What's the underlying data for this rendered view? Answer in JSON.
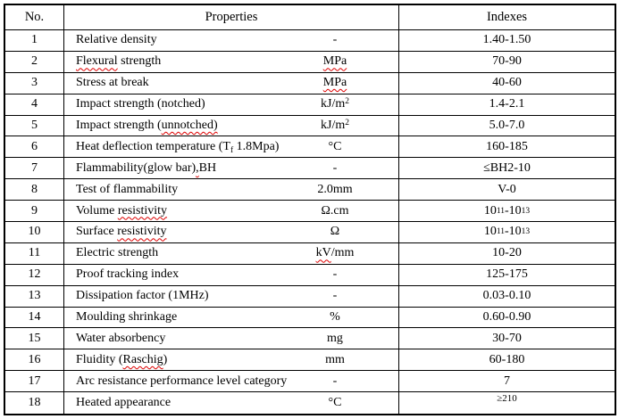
{
  "table": {
    "header": {
      "no": "No.",
      "properties": "Properties",
      "indexes": "Indexes"
    },
    "colors": {
      "border": "#000000",
      "text": "#000000",
      "background": "#ffffff",
      "spellcheck_underline": "#dd0000"
    },
    "rows": [
      {
        "no": "1",
        "property": [
          {
            "t": "Relative density"
          }
        ],
        "unit": [
          {
            "t": "-"
          }
        ],
        "index": [
          {
            "t": "1.40-1.50"
          }
        ]
      },
      {
        "no": "2",
        "property": [
          {
            "t": "Flexural",
            "wavy": true
          },
          {
            "t": " strength"
          }
        ],
        "unit": [
          {
            "t": "MPa",
            "wavy": true
          }
        ],
        "index": [
          {
            "t": "70-90"
          }
        ]
      },
      {
        "no": "3",
        "property": [
          {
            "t": "Stress at break"
          }
        ],
        "unit": [
          {
            "t": "MPa",
            "wavy": true
          }
        ],
        "index": [
          {
            "t": "40-60"
          }
        ]
      },
      {
        "no": "4",
        "property": [
          {
            "t": "Impact strength (notched)"
          }
        ],
        "unit": [
          {
            "t": "kJ/m"
          },
          {
            "t": "2",
            "sup": true
          }
        ],
        "index": [
          {
            "t": "1.4-2.1"
          }
        ]
      },
      {
        "no": "5",
        "property": [
          {
            "t": "Impact strength ("
          },
          {
            "t": "unnotched)",
            "wavy": true
          }
        ],
        "unit": [
          {
            "t": "kJ/m"
          },
          {
            "t": "2",
            "sup": true
          }
        ],
        "index": [
          {
            "t": "5.0-7.0"
          }
        ]
      },
      {
        "no": "6",
        "property": [
          {
            "t": "Heat deflection temperature (T"
          },
          {
            "t": "f",
            "sub": true,
            "wavy": true
          },
          {
            "t": " 1.8Mpa)"
          }
        ],
        "unit": [
          {
            "t": "°C"
          }
        ],
        "index": [
          {
            "t": "160-185"
          }
        ]
      },
      {
        "no": "7",
        "property": [
          {
            "t": "Flammability(glow bar)"
          },
          {
            "t": ",",
            "wavy": true
          },
          {
            "t": "BH"
          }
        ],
        "unit": [
          {
            "t": "-"
          }
        ],
        "index": [
          {
            "t": "≤BH2-10"
          }
        ]
      },
      {
        "no": "8",
        "property": [
          {
            "t": "Test of flammability"
          }
        ],
        "unit": [
          {
            "t": "2.0mm"
          }
        ],
        "index": [
          {
            "t": "V-0"
          }
        ]
      },
      {
        "no": "9",
        "property": [
          {
            "t": "Volume "
          },
          {
            "t": "resistivity",
            "wavy": true
          }
        ],
        "unit": [
          {
            "t": "Ω.cm"
          }
        ],
        "index": [
          {
            "t": "10"
          },
          {
            "t": "11",
            "sup": true
          },
          {
            "t": "-10"
          },
          {
            "t": "13",
            "sup": true
          }
        ]
      },
      {
        "no": "10",
        "property": [
          {
            "t": "Surface "
          },
          {
            "t": "resistivity",
            "wavy": true
          }
        ],
        "unit": [
          {
            "t": "Ω"
          }
        ],
        "index": [
          {
            "t": "10"
          },
          {
            "t": "11",
            "sup": true
          },
          {
            "t": "-10"
          },
          {
            "t": "13",
            "sup": true
          }
        ]
      },
      {
        "no": "11",
        "property": [
          {
            "t": "Electric strength"
          }
        ],
        "unit": [
          {
            "t": "kV",
            "wavy": true
          },
          {
            "t": "/mm"
          }
        ],
        "index": [
          {
            "t": "10-20"
          }
        ]
      },
      {
        "no": "12",
        "property": [
          {
            "t": "Proof tracking index"
          }
        ],
        "unit": [
          {
            "t": "-"
          }
        ],
        "index": [
          {
            "t": "125-175"
          }
        ]
      },
      {
        "no": "13",
        "property": [
          {
            "t": "Dissipation factor (1MHz)"
          }
        ],
        "unit": [
          {
            "t": "-"
          }
        ],
        "index": [
          {
            "t": "0.03-0.10"
          }
        ]
      },
      {
        "no": "14",
        "property": [
          {
            "t": "Moulding shrinkage"
          }
        ],
        "unit": [
          {
            "t": "%"
          }
        ],
        "index": [
          {
            "t": "0.60-0.90"
          }
        ]
      },
      {
        "no": "15",
        "property": [
          {
            "t": "Water absorbency"
          }
        ],
        "unit": [
          {
            "t": "mg"
          }
        ],
        "index": [
          {
            "t": "30-70"
          }
        ]
      },
      {
        "no": "16",
        "property": [
          {
            "t": "Fluidity ("
          },
          {
            "t": "Raschig",
            "wavy": true
          },
          {
            "t": ")"
          }
        ],
        "unit": [
          {
            "t": "mm"
          }
        ],
        "index": [
          {
            "t": "60-180"
          }
        ]
      },
      {
        "no": "17",
        "property": [
          {
            "t": "Arc resistance performance level category"
          }
        ],
        "unit": [
          {
            "t": "-"
          }
        ],
        "index": [
          {
            "t": "7"
          }
        ]
      },
      {
        "no": "18",
        "property": [
          {
            "t": "Heated appearance"
          }
        ],
        "unit": [
          {
            "t": "°C"
          }
        ],
        "index": [
          {
            "t": "≥210",
            "small": true
          }
        ]
      }
    ]
  }
}
